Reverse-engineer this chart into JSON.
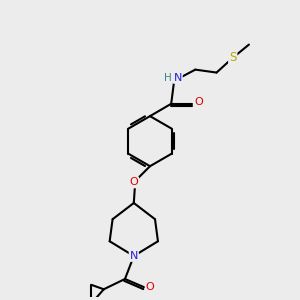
{
  "background_color": "#ececec",
  "atom_colors": {
    "C": "#000000",
    "N": "#2020dd",
    "O": "#dd0000",
    "S": "#bbaa00",
    "H": "#338888"
  },
  "bond_color": "#000000",
  "bond_width": 1.5
}
